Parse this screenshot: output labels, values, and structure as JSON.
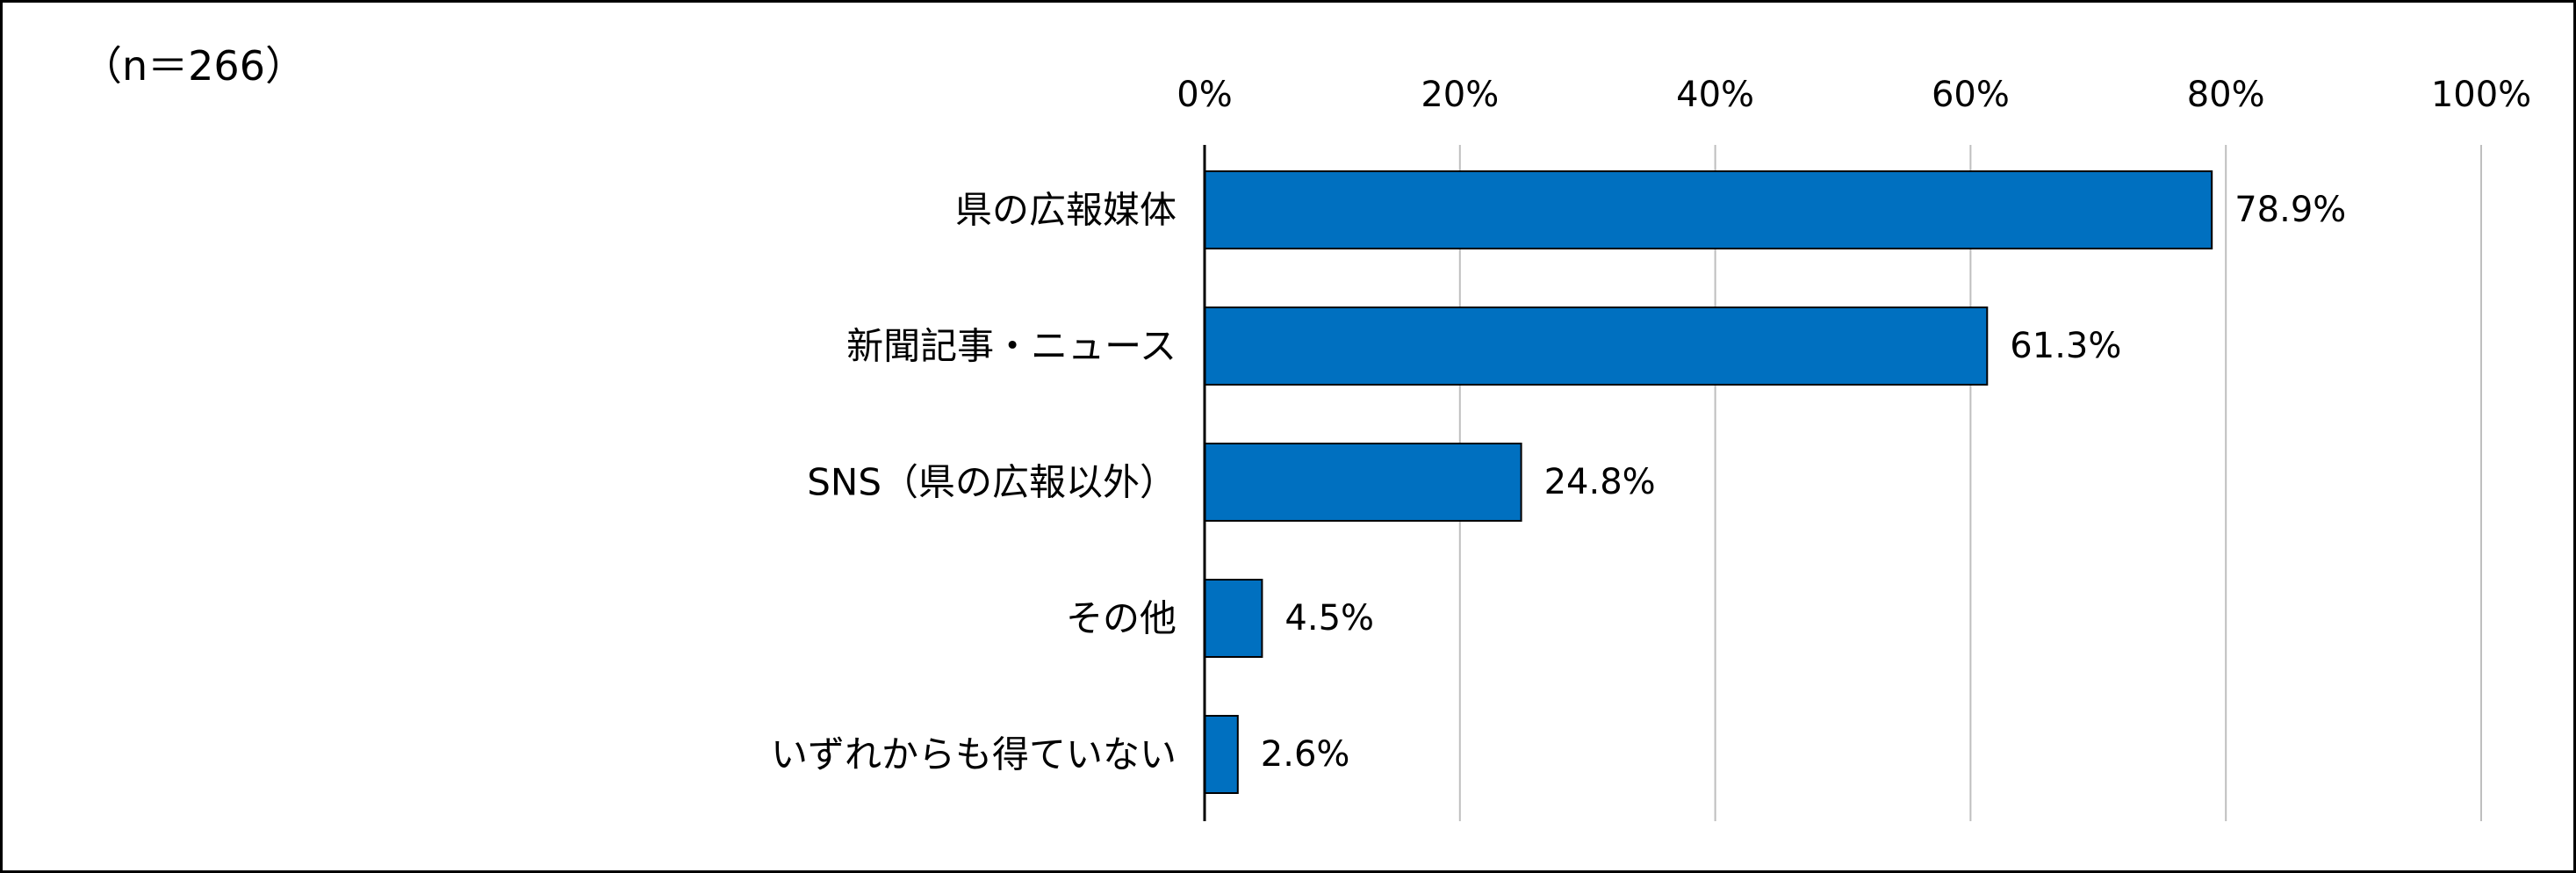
{
  "sample_note": "（n＝266）",
  "colors": {
    "bar_fill": "#0070C0",
    "bar_stroke": "#000000",
    "grid": "#BFBFBF",
    "axis": "#000000",
    "background": "#FFFFFF"
  },
  "chart_data": {
    "type": "bar",
    "orientation": "horizontal",
    "categories": [
      "県の広報媒体",
      "新聞記事・ニュース",
      "SNS（県の広報以外）",
      "その他",
      "いずれからも得ていない"
    ],
    "values": [
      78.9,
      61.3,
      24.8,
      4.5,
      2.6
    ],
    "value_labels": [
      "78.9%",
      "61.3%",
      "24.8%",
      "4.5%",
      "2.6%"
    ],
    "xlim": [
      0,
      100
    ],
    "xticks": [
      0,
      20,
      40,
      60,
      80,
      100
    ],
    "xtick_labels": [
      "0%",
      "20%",
      "40%",
      "60%",
      "80%",
      "100%"
    ],
    "x_axis_position": "top",
    "grid": true,
    "legend": "none"
  }
}
